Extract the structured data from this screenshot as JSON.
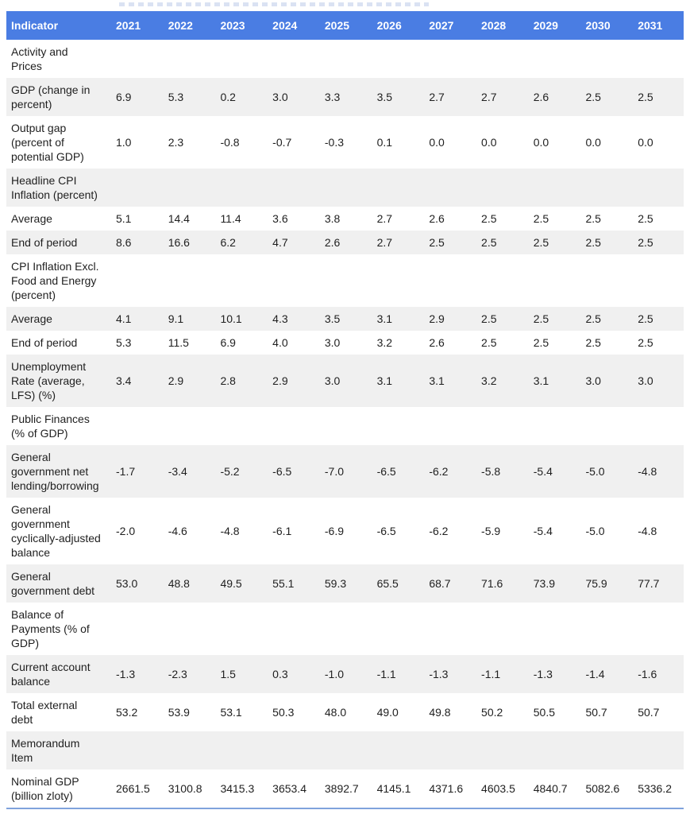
{
  "colors": {
    "header_bg": "#4a7de3",
    "header_text": "#ffffff",
    "stripe_bg": "#f0f0f0",
    "bottom_border": "#7fa3dc",
    "body_text": "#1f1f1f"
  },
  "table": {
    "header": [
      "Indicator",
      "2021",
      "2022",
      "2023",
      "2024",
      "2025",
      "2026",
      "2027",
      "2028",
      "2029",
      "2030",
      "2031"
    ],
    "rows": [
      {
        "label": "Activity and Prices",
        "section": true,
        "values": []
      },
      {
        "label": "GDP (change in percent)",
        "section": false,
        "values": [
          "6.9",
          "5.3",
          "0.2",
          "3.0",
          "3.3",
          "3.5",
          "2.7",
          "2.7",
          "2.6",
          "2.5",
          "2.5"
        ]
      },
      {
        "label": "Output gap (percent of potential GDP)",
        "section": false,
        "values": [
          "1.0",
          "2.3",
          "-0.8",
          "-0.7",
          "-0.3",
          "0.1",
          "0.0",
          "0.0",
          "0.0",
          "0.0",
          "0.0"
        ]
      },
      {
        "label": "Headline CPI Inflation (percent)",
        "section": true,
        "values": []
      },
      {
        "label": "Average",
        "section": false,
        "values": [
          "5.1",
          "14.4",
          "11.4",
          "3.6",
          "3.8",
          "2.7",
          "2.6",
          "2.5",
          "2.5",
          "2.5",
          "2.5"
        ]
      },
      {
        "label": "End of period",
        "section": false,
        "values": [
          "8.6",
          "16.6",
          "6.2",
          "4.7",
          "2.6",
          "2.7",
          "2.5",
          "2.5",
          "2.5",
          "2.5",
          "2.5"
        ]
      },
      {
        "label": "CPI Inflation Excl. Food and Energy (percent)",
        "section": true,
        "values": []
      },
      {
        "label": "Average",
        "section": false,
        "values": [
          "4.1",
          "9.1",
          "10.1",
          "4.3",
          "3.5",
          "3.1",
          "2.9",
          "2.5",
          "2.5",
          "2.5",
          "2.5"
        ]
      },
      {
        "label": "End of period",
        "section": false,
        "values": [
          "5.3",
          "11.5",
          "6.9",
          "4.0",
          "3.0",
          "3.2",
          "2.6",
          "2.5",
          "2.5",
          "2.5",
          "2.5"
        ]
      },
      {
        "label": "Unemployment Rate (average, LFS) (%)",
        "section": false,
        "values": [
          "3.4",
          "2.9",
          "2.8",
          "2.9",
          "3.0",
          "3.1",
          "3.1",
          "3.2",
          "3.1",
          "3.0",
          "3.0"
        ]
      },
      {
        "label": "Public Finances (% of GDP)",
        "section": true,
        "values": []
      },
      {
        "label": "General government net lending/borrowing",
        "section": false,
        "values": [
          "-1.7",
          "-3.4",
          "-5.2",
          "-6.5",
          "-7.0",
          "-6.5",
          "-6.2",
          "-5.8",
          "-5.4",
          "-5.0",
          "-4.8"
        ]
      },
      {
        "label": "General government cyclically-adjusted balance",
        "section": false,
        "values": [
          "-2.0",
          "-4.6",
          "-4.8",
          "-6.1",
          "-6.9",
          "-6.5",
          "-6.2",
          "-5.9",
          "-5.4",
          "-5.0",
          "-4.8"
        ]
      },
      {
        "label": "General government debt",
        "section": false,
        "values": [
          "53.0",
          "48.8",
          "49.5",
          "55.1",
          "59.3",
          "65.5",
          "68.7",
          "71.6",
          "73.9",
          "75.9",
          "77.7"
        ]
      },
      {
        "label": "Balance of Payments (% of GDP)",
        "section": true,
        "values": []
      },
      {
        "label": "Current account balance",
        "section": false,
        "values": [
          "-1.3",
          "-2.3",
          "1.5",
          "0.3",
          "-1.0",
          "-1.1",
          "-1.3",
          "-1.1",
          "-1.3",
          "-1.4",
          "-1.6"
        ]
      },
      {
        "label": "Total external debt",
        "section": false,
        "values": [
          "53.2",
          "53.9",
          "53.1",
          "50.3",
          "48.0",
          "49.0",
          "49.8",
          "50.2",
          "50.5",
          "50.7",
          "50.7"
        ]
      },
      {
        "label": "Memorandum Item",
        "section": true,
        "values": []
      },
      {
        "label": "Nominal GDP (billion zloty)",
        "section": false,
        "values": [
          "2661.5",
          "3100.8",
          "3415.3",
          "3653.4",
          "3892.7",
          "4145.1",
          "4371.6",
          "4603.5",
          "4840.7",
          "5082.6",
          "5336.2"
        ]
      }
    ]
  }
}
